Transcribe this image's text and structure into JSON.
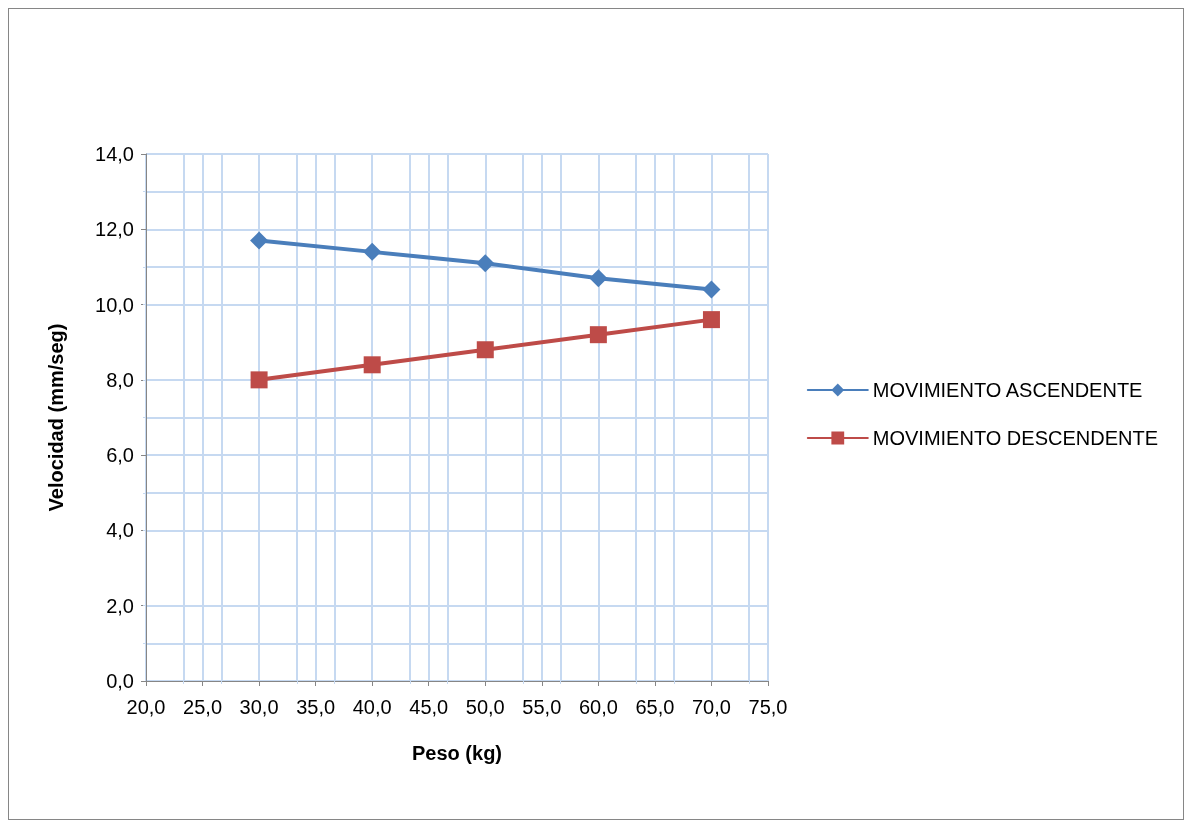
{
  "chart_data": {
    "type": "line",
    "xlabel": "Peso (kg)",
    "ylabel": "Velocidad (mm/seg)",
    "x": [
      30,
      40,
      50,
      60,
      70
    ],
    "series": [
      {
        "name": "MOVIMIENTO ASCENDENTE",
        "color": "#4a7ebb",
        "marker": "diamond",
        "values": [
          11.7,
          11.4,
          11.1,
          10.7,
          10.4
        ]
      },
      {
        "name": "MOVIMIENTO DESCENDENTE",
        "color": "#be4b48",
        "marker": "square",
        "values": [
          8.0,
          8.4,
          8.8,
          9.2,
          9.6
        ]
      }
    ],
    "xlim": [
      20,
      75
    ],
    "xticks": [
      {
        "value": 20,
        "label": "20,0"
      },
      {
        "value": 25,
        "label": "25,0"
      },
      {
        "value": 30,
        "label": "30,0"
      },
      {
        "value": 35,
        "label": "35,0"
      },
      {
        "value": 40,
        "label": "40,0"
      },
      {
        "value": 45,
        "label": "45,0"
      },
      {
        "value": 50,
        "label": "50,0"
      },
      {
        "value": 55,
        "label": "55,0"
      },
      {
        "value": 60,
        "label": "60,0"
      },
      {
        "value": 65,
        "label": "65,0"
      },
      {
        "value": 70,
        "label": "70,0"
      },
      {
        "value": 75,
        "label": "75,0"
      }
    ],
    "ylim": [
      0,
      14
    ],
    "yticks": [
      {
        "value": 0,
        "label": "0,0"
      },
      {
        "value": 2,
        "label": "2,0"
      },
      {
        "value": 4,
        "label": "4,0"
      },
      {
        "value": 6,
        "label": "6,0"
      },
      {
        "value": 8,
        "label": "8,0"
      },
      {
        "value": 10,
        "label": "10,0"
      },
      {
        "value": 12,
        "label": "12,0"
      },
      {
        "value": 14,
        "label": "14,0"
      }
    ],
    "grid": true,
    "legend": "right",
    "line_style": "solid"
  }
}
